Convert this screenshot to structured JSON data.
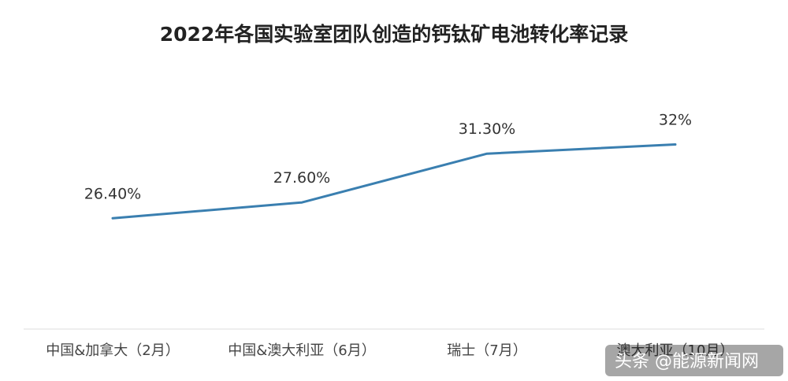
{
  "chart_data": {
    "type": "line",
    "title": "2022年各国实验室团队创造的钙钛矿电池转化率记录",
    "categories": [
      "中国&加拿大（2月）",
      "中国&澳大利亚（6月）",
      "瑞士（7月）",
      "澳大利亚（10月）"
    ],
    "series": [
      {
        "values": [
          26.4,
          27.6,
          31.3,
          32
        ],
        "labels": [
          "26.40%",
          "27.60%",
          "31.30%",
          "32%"
        ]
      }
    ],
    "ylim": [
      18,
      34
    ],
    "grid": false,
    "legend": "none",
    "colors": {
      "line": "#3a7fb0",
      "baseline": "#dcdcdc"
    }
  },
  "watermark": {
    "text": "头条 @能源新闻网"
  }
}
